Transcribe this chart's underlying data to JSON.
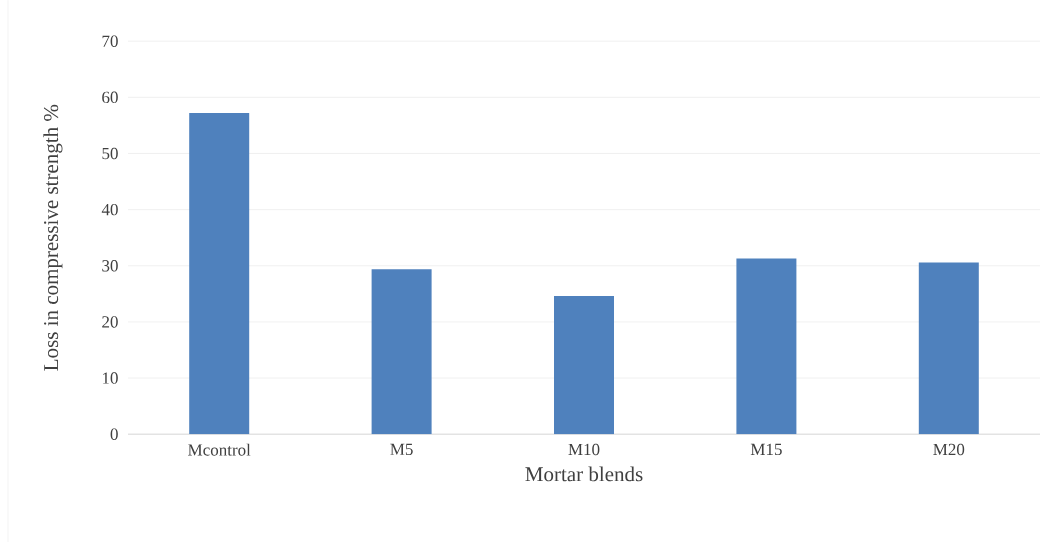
{
  "chart_data": {
    "type": "bar",
    "xlabel": "Mortar blends",
    "ylabel": "Loss in compressive strength %",
    "categories": [
      "Mcontrol",
      "M5",
      "M10",
      "M15",
      "M20"
    ],
    "values": [
      57.2,
      29.4,
      24.6,
      31.3,
      30.6
    ],
    "color": "#4f81bd",
    "ylim": [
      0,
      70
    ],
    "yticks": [
      0,
      10,
      20,
      30,
      40,
      50,
      60,
      70
    ],
    "grid": "y"
  }
}
